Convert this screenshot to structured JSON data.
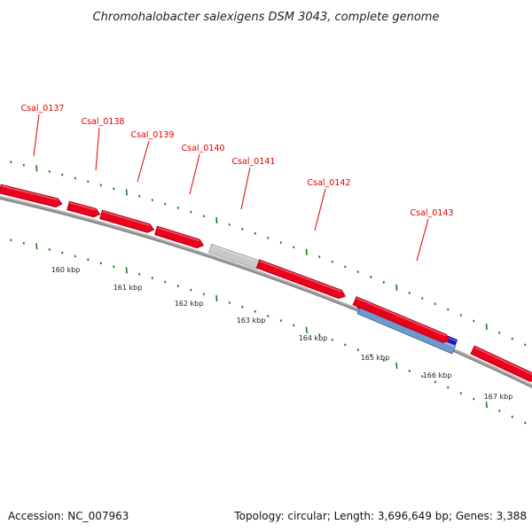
{
  "title": "Chromohalobacter salexigens DSM 3043, complete genome",
  "footer": {
    "accession": "Accession: NC_007963",
    "summary": "Topology: circular; Length: 3,696,649 bp; Genes: 3,388"
  },
  "colors": {
    "gene": "#e8001c",
    "gene_dark": "#a80012",
    "pseudo_gene": "#c8c8c8",
    "rna_gene": "#1414d6",
    "rna_gene_light": "#6e9acb",
    "backbone": "#8a8a8a",
    "ticks": "#1a7a1a",
    "label": "#dd0000"
  },
  "genes": [
    {
      "label": "Csal_0137",
      "kind": "cds"
    },
    {
      "label": "Csal_0138",
      "kind": "cds"
    },
    {
      "label": "Csal_0139",
      "kind": "cds"
    },
    {
      "label": "Csal_0140",
      "kind": "cds"
    },
    {
      "label": "Csal_0141",
      "kind": "pseudo"
    },
    {
      "label": "Csal_0142",
      "kind": "cds"
    },
    {
      "label": "Csal_0143",
      "kind": "rna"
    }
  ],
  "extra_genes": [
    {
      "kind": "cds"
    },
    {
      "kind": "cds"
    }
  ],
  "kbp_labels": [
    "160 kbp",
    "161 kbp",
    "162 kbp",
    "163 kbp",
    "164 kbp",
    "165 kbp",
    "166 kbp",
    "167 kbp"
  ]
}
